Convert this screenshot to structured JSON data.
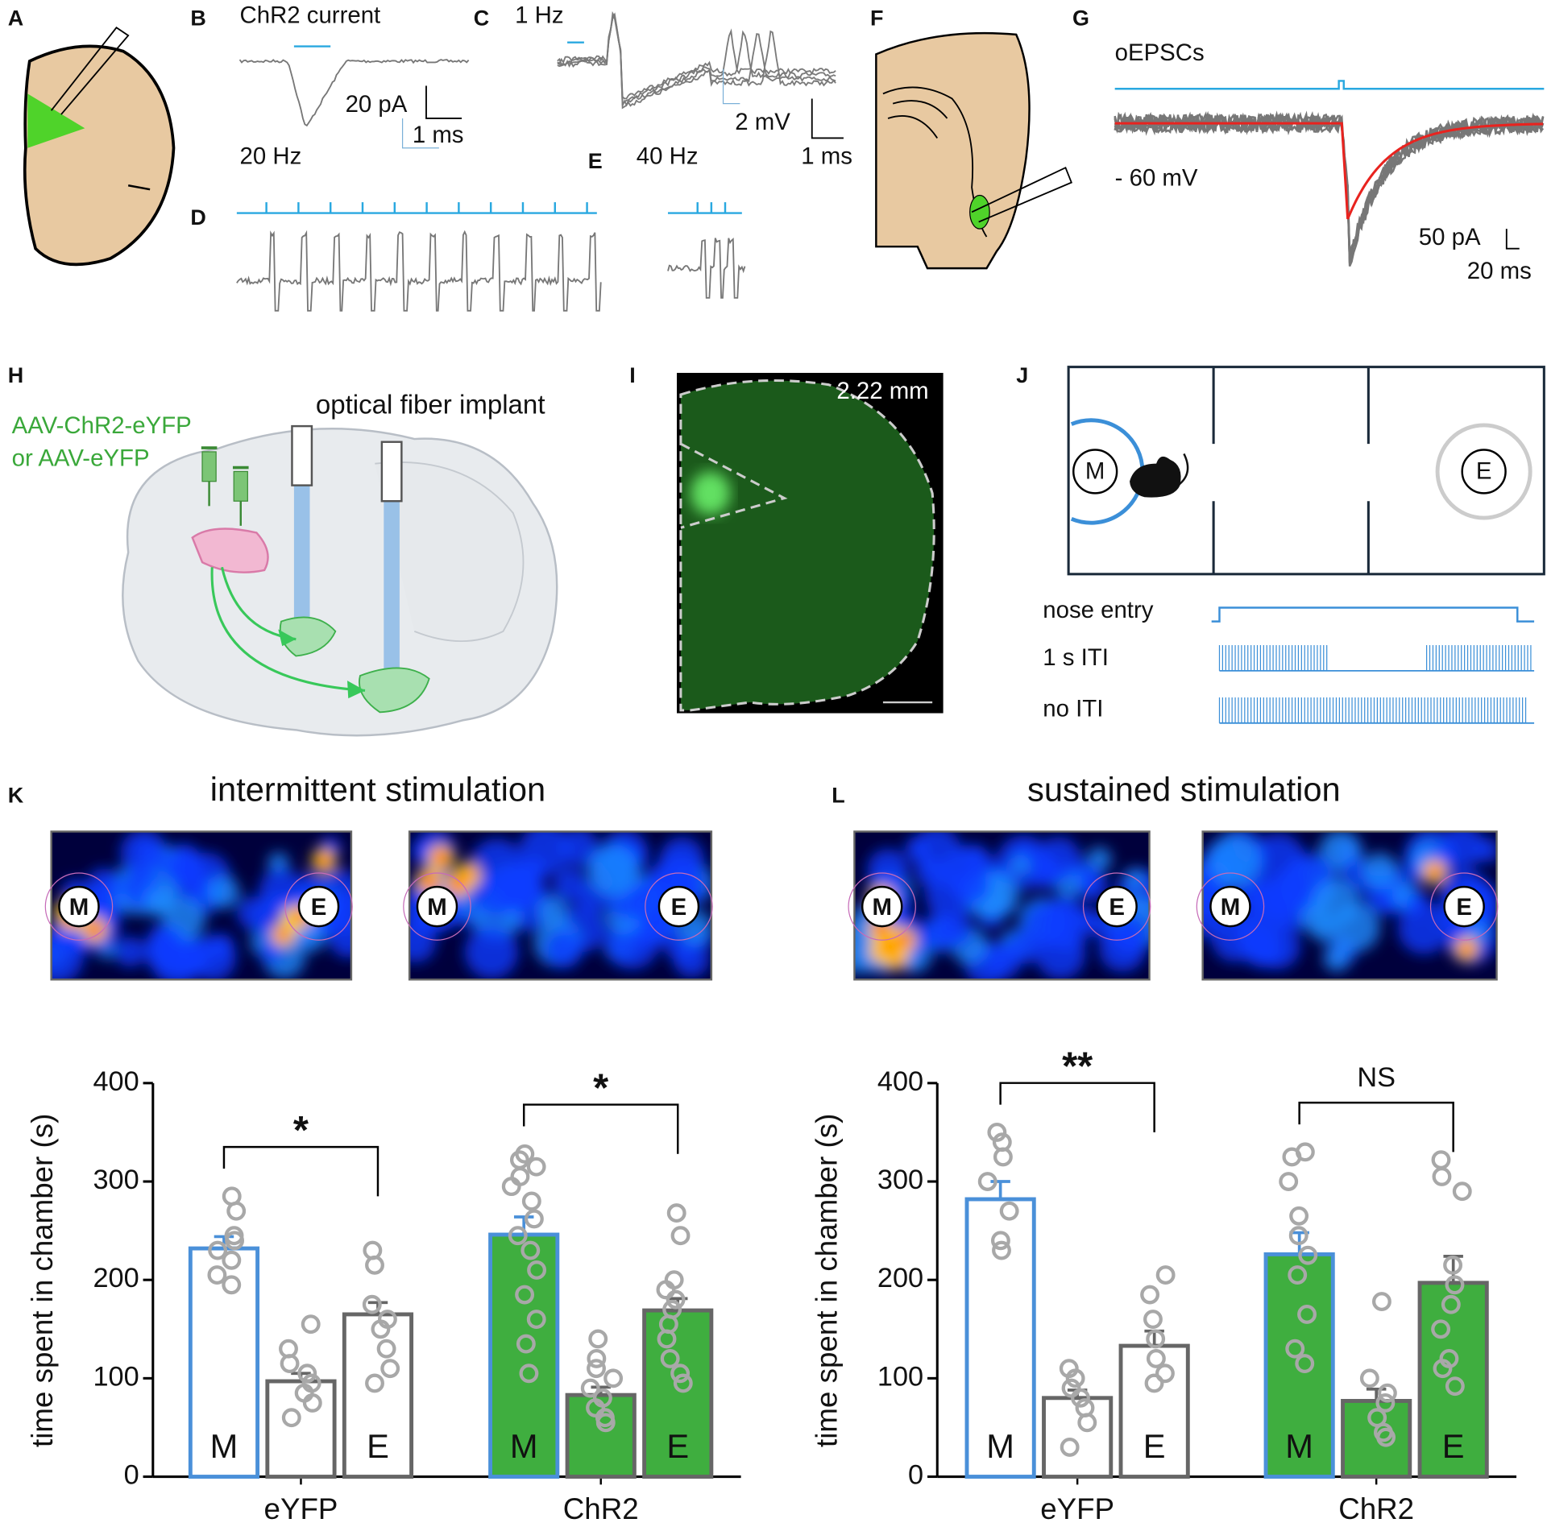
{
  "panels": {
    "labels": [
      "A",
      "B",
      "C",
      "D",
      "E",
      "F",
      "G",
      "H",
      "I",
      "J",
      "K",
      "L"
    ],
    "B": {
      "title": "ChR2 current",
      "scale_y": "20 pA",
      "scale_x": "1 ms"
    },
    "C": {
      "title": "1 Hz",
      "scale_y": "2 mV",
      "scale_x": "1 ms"
    },
    "D": {
      "title": "20 Hz"
    },
    "E": {
      "title": "40 Hz"
    },
    "G": {
      "title": "oEPSCs",
      "holding": "- 60 mV",
      "scale_y": "50 pA",
      "scale_x": "20 ms"
    },
    "H": {
      "virus": "AAV-ChR2-eYFP",
      "virus_alt": "or AAV-eYFP",
      "implant": "optical fiber implant"
    },
    "I": {
      "scale": "2.22 mm"
    },
    "J": {
      "left_port": "M",
      "right_port": "E",
      "rows": [
        "nose entry",
        "1 s ITI",
        "no ITI"
      ]
    },
    "K": {
      "title": "intermittent stimulation",
      "heatmaps": [
        {
          "left": "M",
          "right": "E"
        },
        {
          "left": "M",
          "right": "E"
        }
      ]
    },
    "L": {
      "title": "sustained stimulation",
      "heatmaps": [
        {
          "left": "M",
          "right": "E"
        },
        {
          "left": "M",
          "right": "E"
        }
      ]
    }
  },
  "chart_data": [
    {
      "type": "bar",
      "y_label": "time spent in chamber (s)",
      "ylim": [
        0,
        400
      ],
      "yticks": [
        0,
        100,
        200,
        300,
        400
      ],
      "groups": [
        {
          "name": "eYFP",
          "color": "#ffffff",
          "significance": "*",
          "bars": [
            {
              "label": "M",
              "color": "#4a90d9",
              "value": 232,
              "error": 12,
              "points": [
                285,
                270,
                245,
                240,
                230,
                220,
                205,
                195
              ]
            },
            {
              "label": null,
              "color": "#666666",
              "value": 97,
              "error": 8,
              "points": [
                155,
                130,
                115,
                105,
                95,
                85,
                75,
                60
              ]
            },
            {
              "label": "E",
              "color": "#666666",
              "value": 165,
              "error": 12,
              "points": [
                230,
                215,
                175,
                160,
                150,
                130,
                110,
                95
              ]
            }
          ]
        },
        {
          "name": "ChR2",
          "color": "#3fae3f",
          "significance": "*",
          "bars": [
            {
              "label": "M",
              "color": "#4a90d9",
              "value": 246,
              "error": 18,
              "points": [
                328,
                322,
                315,
                305,
                295,
                280,
                262,
                245,
                230,
                210,
                185,
                160,
                135,
                105
              ]
            },
            {
              "label": null,
              "color": "#666666",
              "value": 83,
              "error": 8,
              "points": [
                140,
                120,
                110,
                100,
                90,
                80,
                70,
                60,
                55
              ]
            },
            {
              "label": "E",
              "color": "#666666",
              "value": 169,
              "error": 12,
              "points": [
                268,
                245,
                200,
                190,
                180,
                170,
                155,
                140,
                120,
                105,
                95
              ]
            }
          ]
        }
      ]
    },
    {
      "type": "bar",
      "y_label": "time spent in chamber (s)",
      "ylim": [
        0,
        400
      ],
      "yticks": [
        0,
        100,
        200,
        300,
        400
      ],
      "groups": [
        {
          "name": "eYFP",
          "color": "#ffffff",
          "significance": "**",
          "bars": [
            {
              "label": "M",
              "color": "#4a90d9",
              "value": 282,
              "error": 18,
              "points": [
                350,
                340,
                325,
                300,
                270,
                240,
                230
              ]
            },
            {
              "label": null,
              "color": "#666666",
              "value": 80,
              "error": 8,
              "points": [
                110,
                100,
                90,
                80,
                70,
                55,
                30
              ]
            },
            {
              "label": "E",
              "color": "#666666",
              "value": 133,
              "error": 15,
              "points": [
                205,
                185,
                160,
                140,
                120,
                105,
                95
              ]
            }
          ]
        },
        {
          "name": "ChR2",
          "color": "#3fae3f",
          "significance": "NS",
          "bars": [
            {
              "label": "M",
              "color": "#4a90d9",
              "value": 226,
              "error": 22,
              "points": [
                330,
                325,
                300,
                265,
                245,
                225,
                205,
                165,
                130,
                115
              ]
            },
            {
              "label": null,
              "color": "#666666",
              "value": 77,
              "error": 12,
              "points": [
                178,
                100,
                85,
                75,
                60,
                45,
                40
              ]
            },
            {
              "label": "E",
              "color": "#666666",
              "value": 197,
              "error": 27,
              "points": [
                322,
                305,
                290,
                215,
                195,
                175,
                150,
                120,
                110,
                92
              ]
            }
          ]
        }
      ]
    }
  ]
}
